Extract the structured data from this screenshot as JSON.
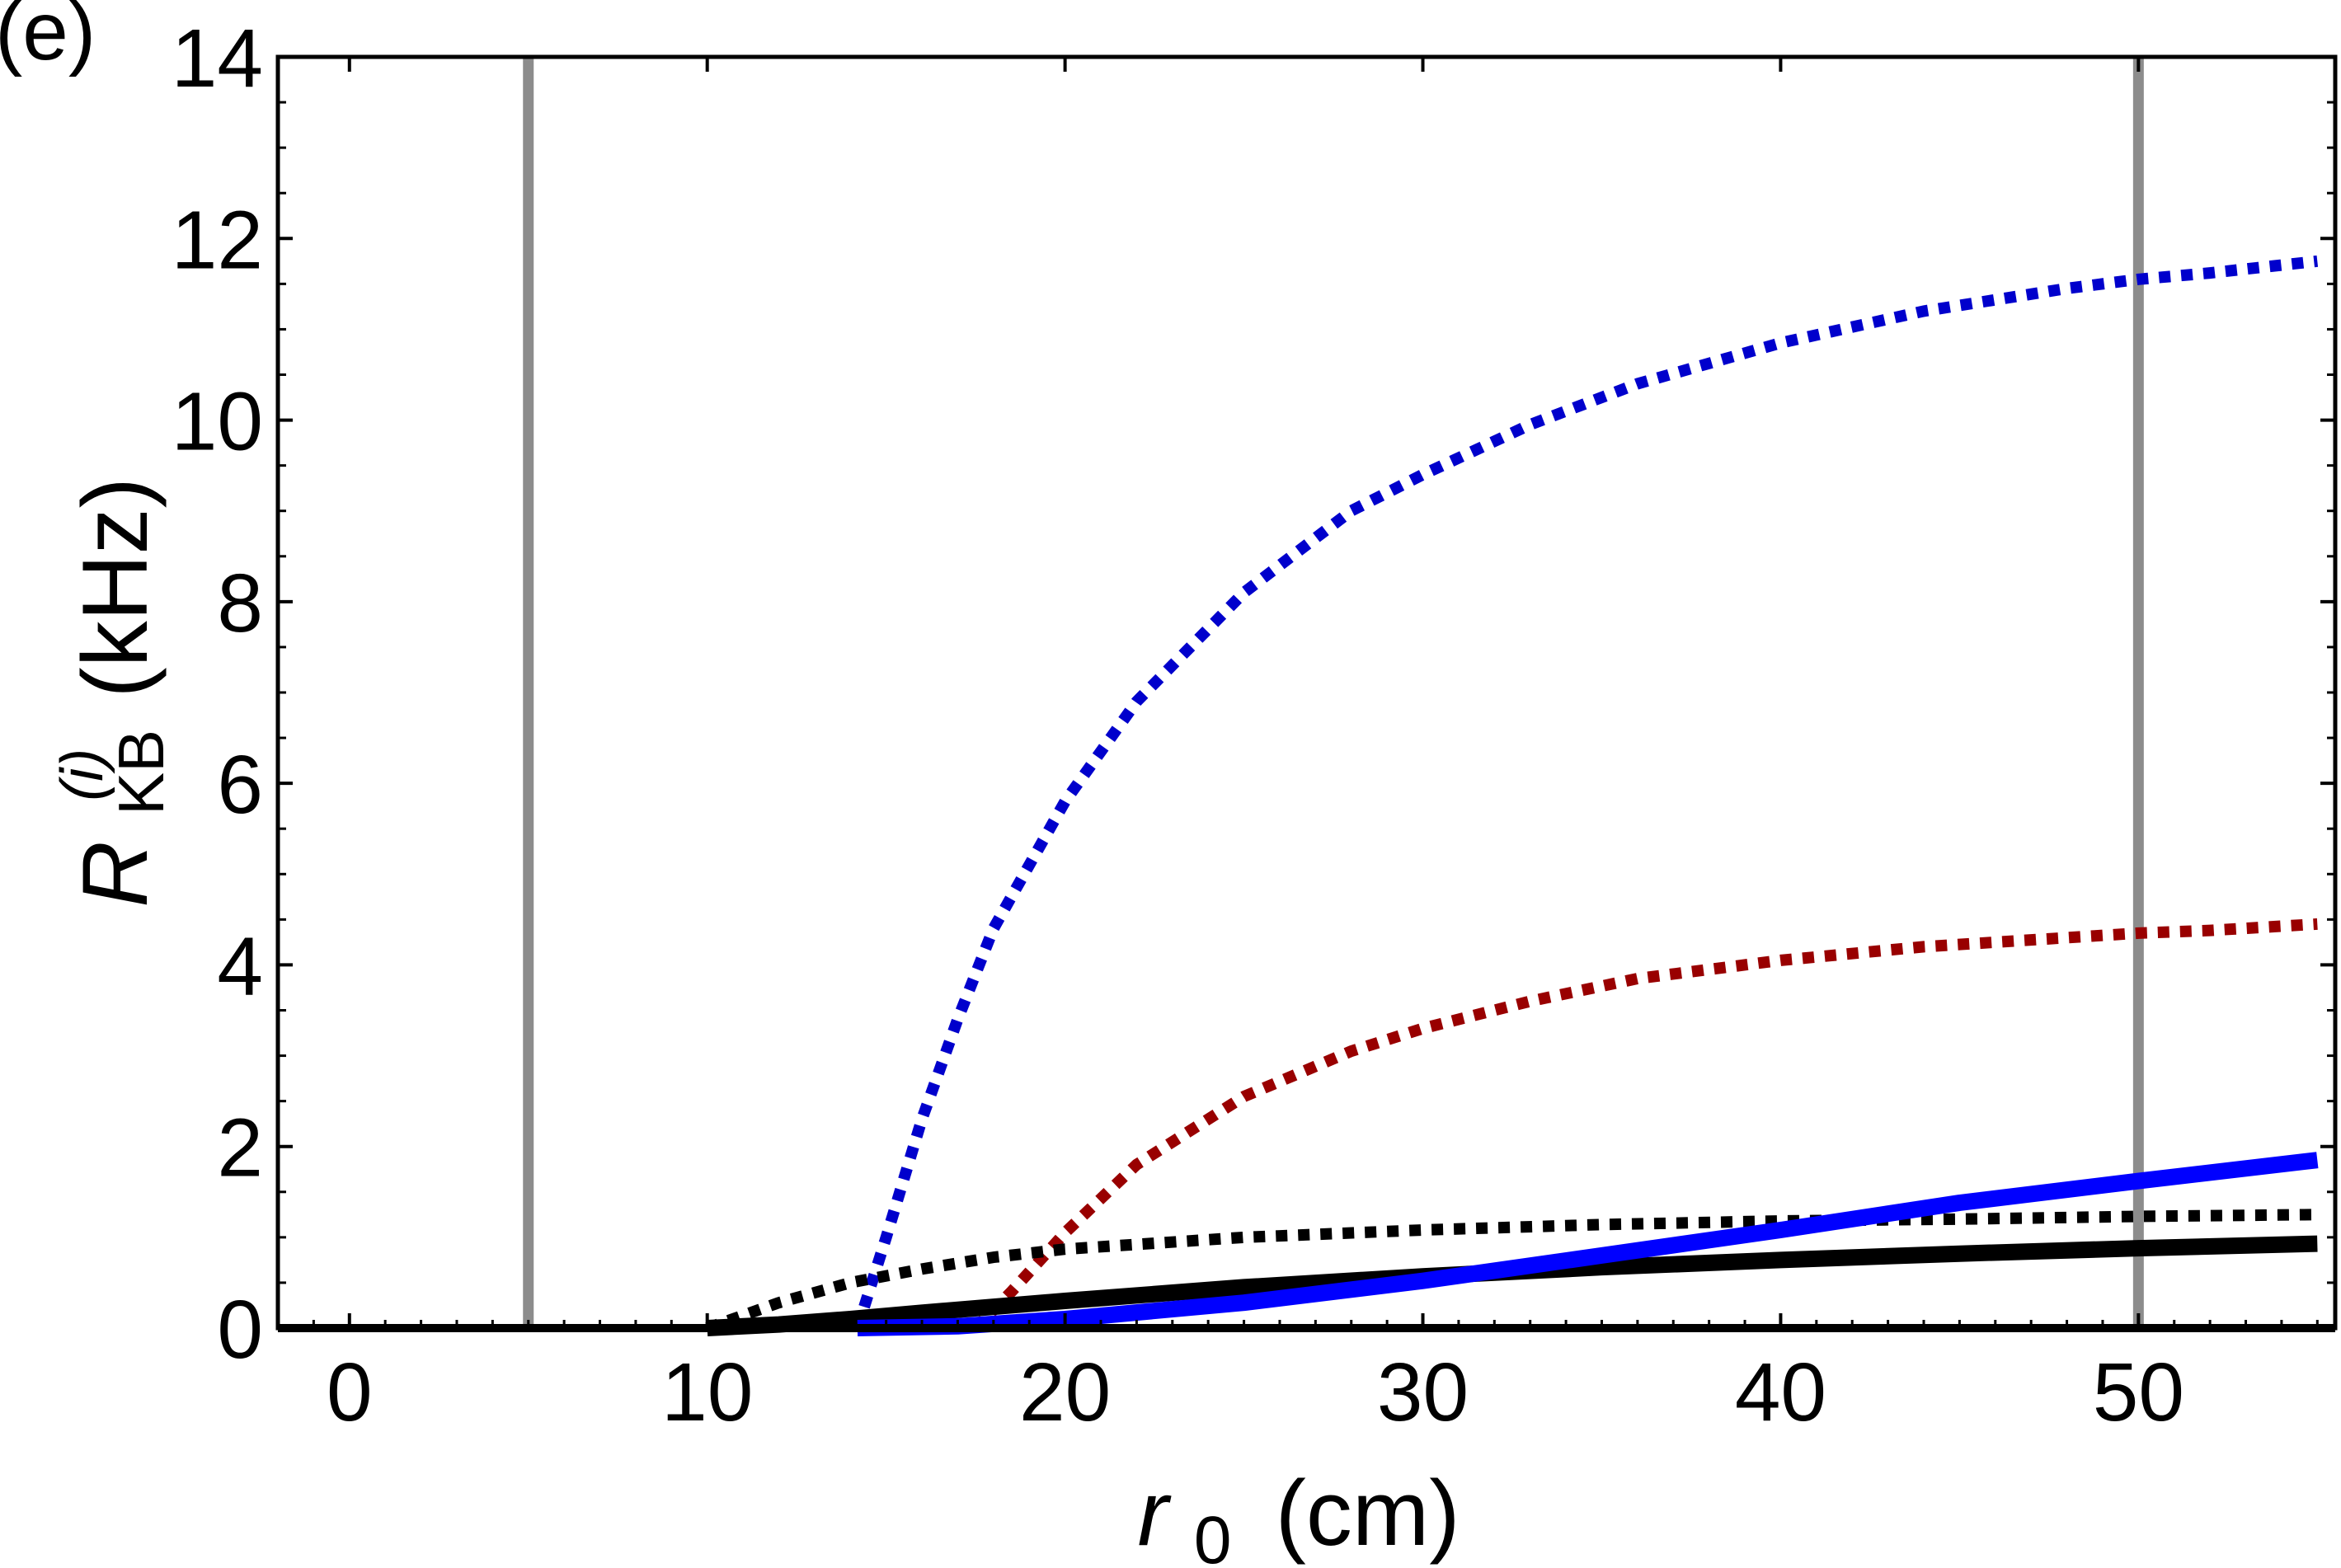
{
  "chart_data": {
    "type": "line",
    "panel_label": "(e)",
    "xlabel": {
      "symbol": "r",
      "subscript": "0",
      "unit": "(cm)"
    },
    "ylabel": {
      "symbol": "R",
      "subscript": "KB",
      "superscript": "(i)",
      "unit": "(kHz)"
    },
    "xlim": [
      -2,
      55.5
    ],
    "ylim": [
      0,
      14
    ],
    "xticks": [
      0,
      10,
      20,
      30,
      40,
      50
    ],
    "yticks": [
      0,
      2,
      4,
      6,
      8,
      10,
      12,
      14
    ],
    "x_tick_labels": [
      "0",
      "10",
      "20",
      "30",
      "40",
      "50"
    ],
    "y_tick_labels": [
      "0",
      "2",
      "4",
      "6",
      "8",
      "10",
      "12",
      "14"
    ],
    "grid": false,
    "vertical_lines": [
      {
        "x": 5,
        "color": "#8c8c8c"
      },
      {
        "x": 50,
        "color": "#8c8c8c"
      }
    ],
    "series": [
      {
        "name": "blue dotted",
        "color": "#0000cc",
        "style": "dotted",
        "x": [
          14.2,
          15,
          16,
          17,
          18,
          20,
          22,
          25,
          28,
          30,
          33,
          36,
          40,
          44,
          48,
          50,
          52,
          55
        ],
        "y": [
          0,
          1.0,
          2.3,
          3.4,
          4.4,
          5.8,
          6.9,
          8.1,
          9.0,
          9.4,
          9.95,
          10.4,
          10.85,
          11.2,
          11.45,
          11.55,
          11.62,
          11.75
        ]
      },
      {
        "name": "dark red dotted",
        "color": "#990000",
        "style": "dotted",
        "x": [
          17.5,
          18.5,
          20,
          22,
          25,
          28,
          30,
          33,
          36,
          40,
          44,
          48,
          50,
          52,
          55
        ],
        "y": [
          0,
          0.4,
          1.05,
          1.8,
          2.55,
          3.05,
          3.3,
          3.6,
          3.85,
          4.05,
          4.2,
          4.3,
          4.35,
          4.38,
          4.45
        ]
      },
      {
        "name": "black dotted",
        "color": "#000000",
        "style": "dotted",
        "x": [
          10,
          12,
          14,
          16,
          18,
          20,
          25,
          30,
          35,
          40,
          45,
          50,
          55
        ],
        "y": [
          0,
          0.28,
          0.5,
          0.65,
          0.78,
          0.87,
          1.0,
          1.08,
          1.14,
          1.18,
          1.2,
          1.23,
          1.25
        ]
      },
      {
        "name": "dark red solid",
        "color": "#990000",
        "style": "solid",
        "x": [
          17,
          20,
          25,
          30,
          35,
          40,
          45,
          50,
          55
        ],
        "y": [
          0,
          0.08,
          0.3,
          0.55,
          0.82,
          1.1,
          1.38,
          1.6,
          1.82
        ]
      },
      {
        "name": "black solid",
        "color": "#000000",
        "style": "solid",
        "x": [
          10,
          12,
          14,
          16,
          20,
          25,
          30,
          35,
          40,
          45,
          50,
          55
        ],
        "y": [
          0,
          0.04,
          0.1,
          0.17,
          0.3,
          0.45,
          0.57,
          0.67,
          0.75,
          0.82,
          0.88,
          0.93
        ]
      },
      {
        "name": "blue solid",
        "color": "#0000ff",
        "style": "solid",
        "x": [
          14.2,
          17,
          20,
          25,
          30,
          35,
          40,
          45,
          50,
          55
        ],
        "y": [
          0,
          0.02,
          0.1,
          0.28,
          0.52,
          0.8,
          1.08,
          1.38,
          1.62,
          1.85
        ]
      }
    ]
  }
}
